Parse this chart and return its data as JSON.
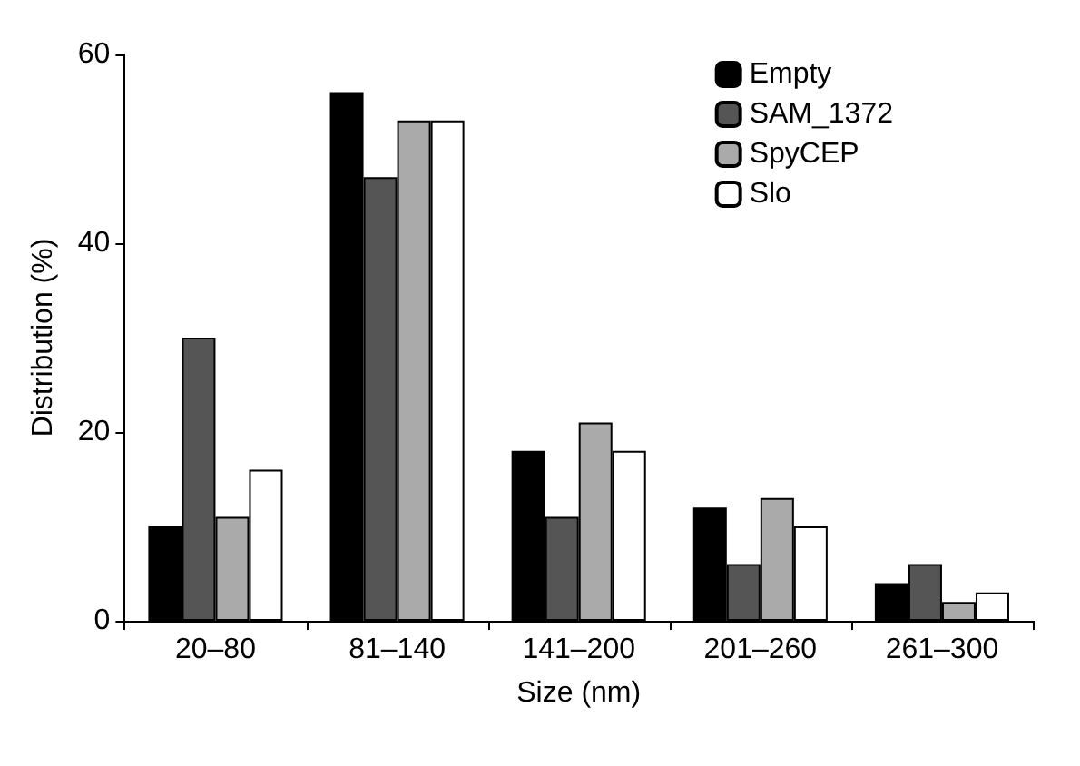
{
  "chart_data": {
    "type": "bar",
    "xlabel": "Size (nm)",
    "ylabel": "Distribution (%)",
    "categories": [
      "20–80",
      "81–140",
      "141–200",
      "201–260",
      "261–300"
    ],
    "series": [
      {
        "name": "Empty",
        "color": "#000000",
        "values": [
          10,
          56,
          18,
          12,
          4
        ]
      },
      {
        "name": "SAM_1372",
        "color": "#555555",
        "values": [
          30,
          47,
          11,
          6,
          6
        ]
      },
      {
        "name": "SpyCEP",
        "color": "#aaaaaa",
        "values": [
          11,
          53,
          21,
          13,
          2
        ]
      },
      {
        "name": "Slo",
        "color": "#ffffff",
        "values": [
          16,
          53,
          18,
          10,
          3
        ]
      }
    ],
    "ylim": [
      0,
      60
    ],
    "yticks": [
      0,
      20,
      40,
      60
    ],
    "grid": false,
    "legend": "top right"
  }
}
